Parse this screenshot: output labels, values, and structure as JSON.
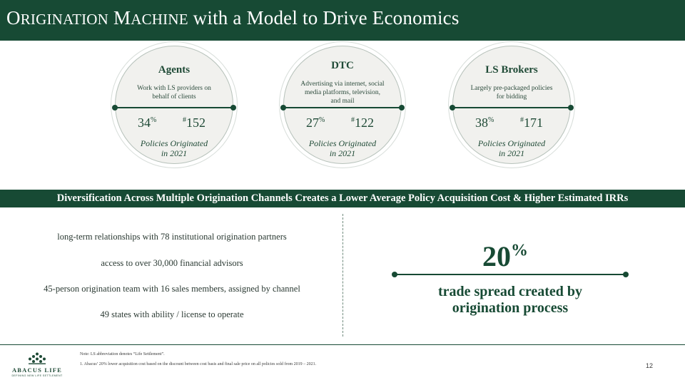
{
  "title": {
    "part1_cap": "O",
    "part1_rest": "RIGINATION",
    "part2_cap": "M",
    "part2_rest": "ACHINE",
    "tail": " with a Model to Drive Economics"
  },
  "channels": [
    {
      "name": "Agents",
      "description": "Work with LS providers on behalf of clients",
      "pct": "34",
      "pct_sym": "%",
      "num_sym": "#",
      "num": "152",
      "label_line1": "Policies Originated",
      "label_line2": "in 2021"
    },
    {
      "name": "DTC",
      "description": "Advertising via internet, social media platforms, television, and mail",
      "pct": "27",
      "pct_sym": "%",
      "num_sym": "#",
      "num": "122",
      "label_line1": "Policies Originated",
      "label_line2": "in 2021"
    },
    {
      "name": "LS Brokers",
      "description": "Largely pre-packaged policies for bidding",
      "pct": "38",
      "pct_sym": "%",
      "num_sym": "#",
      "num": "171",
      "label_line1": "Policies Originated",
      "label_line2": "in 2021"
    }
  ],
  "banner": "Diversification Across Multiple Origination Channels Creates a Lower Average Policy Acquisition Cost & Higher Estimated IRRs",
  "highlights": [
    "long-term relationships with 78 institutional origination partners",
    "access to over 30,000 financial advisors",
    "45-person origination team with 16 sales members, assigned by channel",
    "49 states with ability / license to operate"
  ],
  "stat": {
    "value": "20",
    "sym": "%",
    "line1": "trade spread created by",
    "line2": "origination process"
  },
  "footer": {
    "brand": "ABACUS LIFE",
    "tagline": "DEFINING NEW LIFE SETTLEMENT",
    "note": "Note: LS abbreviation denotes “Life Settlement”.",
    "footnote": "1.    Abacus’ 20% lower acquisition cost based on the discount between cost basis and final sale price on all policies sold from 2019 – 2021.",
    "page": "12"
  },
  "colors": {
    "brand_green": "#174a34",
    "circle_fill": "#f1f1ee"
  }
}
